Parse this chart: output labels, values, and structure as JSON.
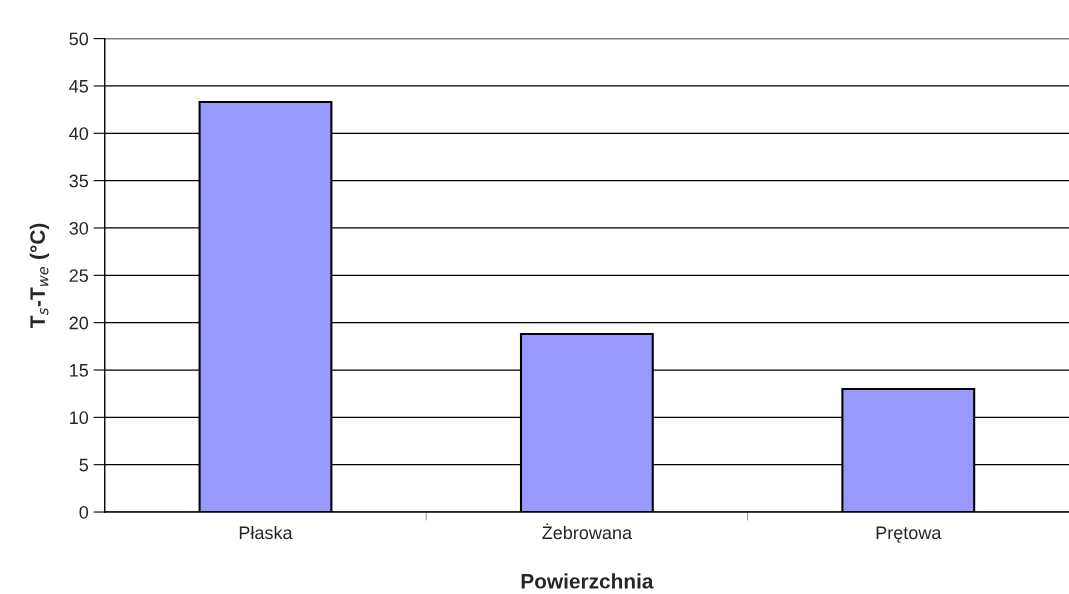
{
  "chart_data": {
    "type": "bar",
    "categories": [
      "Płaska",
      "Żebrowana",
      "Prętowa"
    ],
    "values": [
      43.3,
      18.8,
      13.0
    ],
    "color": "#9999ff",
    "xlabel": "Powierzchnia",
    "ylabel": "T$_{s}$-T$_{we}$ (°C)",
    "ylim": [
      0,
      50
    ],
    "yticks": [
      0,
      5,
      10,
      15,
      20,
      25,
      30,
      35,
      40,
      45,
      50
    ],
    "grid": "y"
  }
}
